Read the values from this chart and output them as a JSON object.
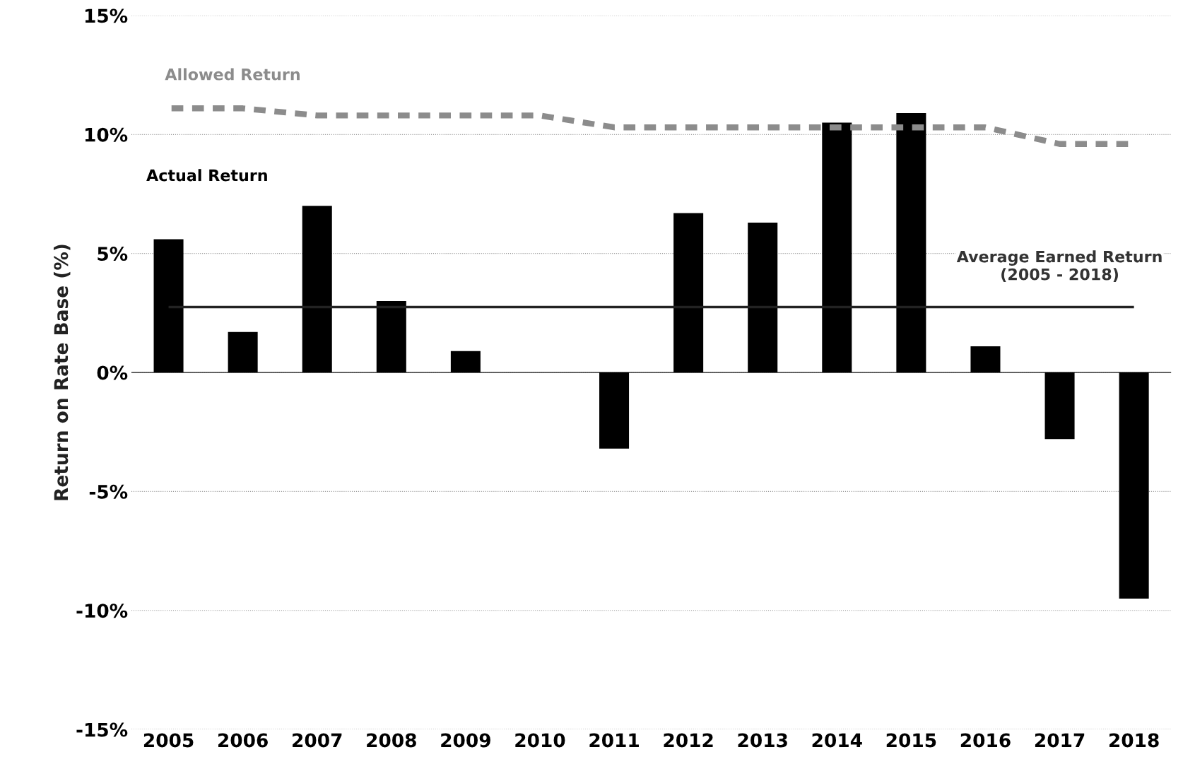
{
  "chart_data": {
    "type": "bar",
    "ylabel": "Return on Rate Base (%)",
    "categories": [
      "2005",
      "2006",
      "2007",
      "2008",
      "2009",
      "2010",
      "2011",
      "2012",
      "2013",
      "2014",
      "2015",
      "2016",
      "2017",
      "2018"
    ],
    "series": [
      {
        "name": "Actual Return",
        "color": "#000000",
        "values": [
          5.6,
          1.7,
          7.0,
          3.0,
          0.9,
          0.0,
          -3.2,
          6.7,
          6.3,
          10.5,
          10.9,
          1.1,
          -2.8,
          -9.5
        ]
      },
      {
        "name": "Allowed Return",
        "type": "line",
        "color": "#8c8c8c",
        "line_style": "dashed",
        "values": [
          11.1,
          11.1,
          10.8,
          10.8,
          10.8,
          10.8,
          10.3,
          10.3,
          10.3,
          10.3,
          10.3,
          10.3,
          9.6,
          9.6
        ]
      }
    ],
    "ref_lines": [
      {
        "axis": "y",
        "value": 2.75,
        "label": "Average Earned Return\n(2005 - 2018)",
        "color": "#222222"
      }
    ],
    "ylim": [
      -15,
      15
    ],
    "yticks": [
      {
        "value": -15,
        "label": "-15%"
      },
      {
        "value": -10,
        "label": "-10%"
      },
      {
        "value": -5,
        "label": "-5%"
      },
      {
        "value": 0,
        "label": "0%"
      },
      {
        "value": 5,
        "label": "5%"
      },
      {
        "value": 10,
        "label": "10%"
      },
      {
        "value": 15,
        "label": "15%"
      }
    ],
    "grid": "y",
    "legend": false
  }
}
